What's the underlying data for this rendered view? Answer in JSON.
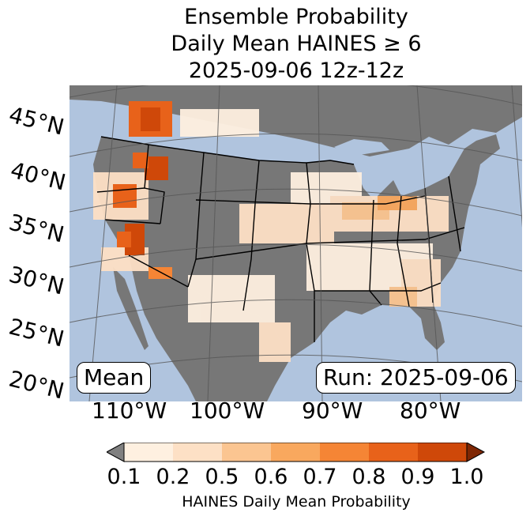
{
  "title": {
    "line1": "Ensemble Probability",
    "line2": "Daily Mean HAINES ≥ 6",
    "line3": "2025-09-06 12z-12z"
  },
  "map": {
    "lat_labels": [
      "45°N",
      "40°N",
      "35°N",
      "30°N",
      "25°N",
      "20°N"
    ],
    "lon_labels": [
      "110°W",
      "100°W",
      "90°W",
      "80°W"
    ],
    "mode_label": "Mean",
    "run_label": "Run: 2025-09-06",
    "colors": {
      "water": "#b0c4de",
      "land_below_threshold": "#777777",
      "border": "#000000",
      "gridline": "#555555"
    }
  },
  "colorbar": {
    "ticks": [
      "0.1",
      "0.2",
      "0.5",
      "0.6",
      "0.7",
      "0.8",
      "0.9",
      "1.0"
    ],
    "colors": [
      "#fef0e0",
      "#fde0c5",
      "#fbc591",
      "#f9a85e",
      "#f58535",
      "#e8621a",
      "#cf4809"
    ],
    "under_color": "#808080",
    "over_color": "#7f2704",
    "label": "HAINES Daily Mean Probability"
  }
}
